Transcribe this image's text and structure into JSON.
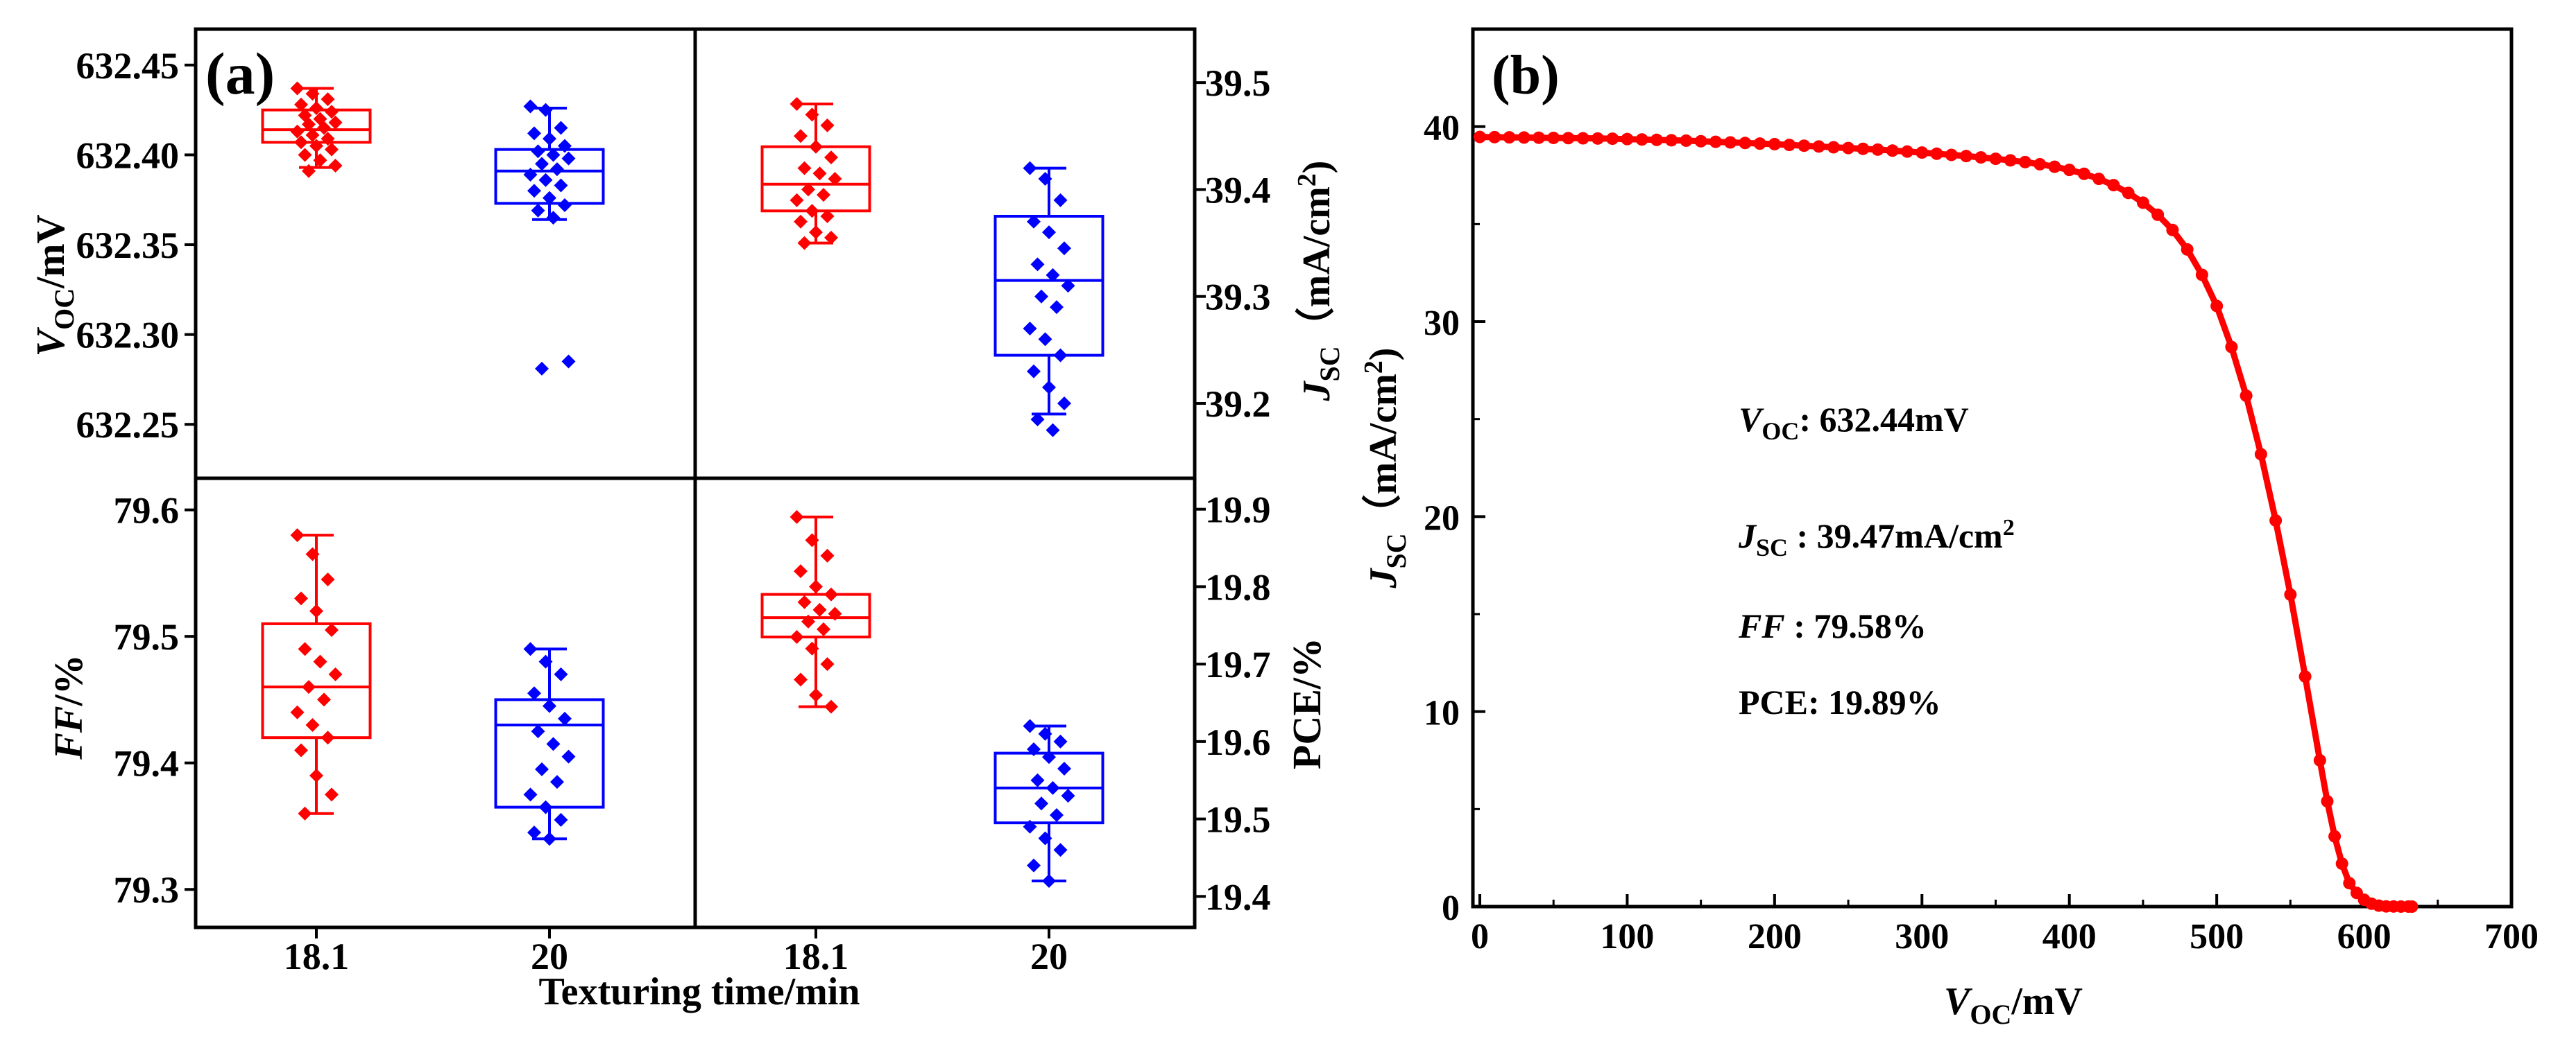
{
  "panel_a": {
    "label": "(a)",
    "xlabel": "Texturing time/min",
    "ylabel_voc": {
      "main": "V",
      "sub": "OC",
      "unit": "/mV"
    },
    "ylabel_jsc": {
      "main": "J",
      "sub": "SC",
      "unit": "（mA/cm",
      "sup": "2",
      "close": ")"
    },
    "ylabel_ff": {
      "main": "FF",
      "unit": "/%"
    },
    "ylabel_pce": "PCE/%"
  },
  "panel_b": {
    "label": "(b)",
    "xlabel": {
      "main": "V",
      "sub": "OC",
      "unit": "/mV"
    },
    "ylabel": {
      "main": "J",
      "sub": "SC",
      "unit": "（mA/cm",
      "sup": "2",
      "close": ")"
    },
    "annotations": {
      "voc": {
        "name": "V",
        "sub": "OC",
        "value": ":  632.44mV"
      },
      "jsc": {
        "name": "J",
        "sub": "SC",
        "value": " :   39.47mA/cm",
        "sup": "2"
      },
      "ff": {
        "name": "FF",
        "value": "  :  79.58%"
      },
      "pce": {
        "name": "PCE",
        "value": ":  19.89%"
      }
    }
  },
  "colors": {
    "red": "#ff0000",
    "blue": "#0000ff",
    "black": "#000000"
  },
  "chart_data": [
    {
      "type": "box",
      "name": "voc-box",
      "categories": [
        "18.1",
        "20"
      ],
      "ylabel": "VOC/mV",
      "ylim": [
        632.22,
        632.47
      ],
      "yticks": [
        632.25,
        632.3,
        632.35,
        632.4,
        632.45
      ],
      "ytick_labels": [
        "632.25",
        "632.30",
        "632.35",
        "632.40",
        "632.45"
      ],
      "series": [
        {
          "name": "18.1",
          "color": "#ff0000",
          "q1": 632.407,
          "median": 632.414,
          "q3": 632.425,
          "whisker_low": 632.393,
          "whisker_high": 632.437,
          "points": [
            632.437,
            632.434,
            632.431,
            632.428,
            632.426,
            632.424,
            632.422,
            632.42,
            632.418,
            632.417,
            632.415,
            632.413,
            632.411,
            632.409,
            632.407,
            632.405,
            632.403,
            632.4,
            632.397,
            632.394,
            632.391
          ]
        },
        {
          "name": "20",
          "color": "#0000ff",
          "q1": 632.373,
          "median": 632.391,
          "q3": 632.403,
          "whisker_low": 632.364,
          "whisker_high": 632.426,
          "points": [
            632.427,
            632.425,
            632.415,
            632.412,
            632.409,
            632.405,
            632.402,
            632.4,
            632.398,
            632.395,
            632.392,
            632.389,
            632.386,
            632.383,
            632.38,
            632.376,
            632.372,
            632.369,
            632.365,
            632.285,
            632.281
          ]
        }
      ]
    },
    {
      "type": "box",
      "name": "jsc-box",
      "categories": [
        "18.1",
        "20"
      ],
      "ylabel": "JSC (mA/cm2)",
      "ylim": [
        39.13,
        39.55
      ],
      "yticks": [
        39.2,
        39.3,
        39.4,
        39.5
      ],
      "ytick_labels": [
        "39.2",
        "39.3",
        "39.4",
        "39.5"
      ],
      "series": [
        {
          "name": "18.1",
          "color": "#ff0000",
          "q1": 39.38,
          "median": 39.405,
          "q3": 39.44,
          "whisker_low": 39.35,
          "whisker_high": 39.48,
          "points": [
            39.48,
            39.47,
            39.46,
            39.45,
            39.44,
            39.43,
            39.42,
            39.415,
            39.41,
            39.4,
            39.395,
            39.39,
            39.38,
            39.375,
            39.37,
            39.36,
            39.355,
            39.35
          ]
        },
        {
          "name": "20",
          "color": "#0000ff",
          "q1": 39.245,
          "median": 39.315,
          "q3": 39.375,
          "whisker_low": 39.19,
          "whisker_high": 39.42,
          "points": [
            39.42,
            39.41,
            39.39,
            39.37,
            39.36,
            39.345,
            39.33,
            39.32,
            39.31,
            39.3,
            39.29,
            39.27,
            39.26,
            39.245,
            39.23,
            39.215,
            39.2,
            39.185,
            39.175
          ]
        }
      ]
    },
    {
      "type": "box",
      "name": "ff-box",
      "categories": [
        "18.1",
        "20"
      ],
      "ylabel": "FF/%",
      "ylim": [
        79.27,
        79.625
      ],
      "yticks": [
        79.3,
        79.4,
        79.5,
        79.6
      ],
      "ytick_labels": [
        "79.3",
        "79.4",
        "79.5",
        "79.6"
      ],
      "series": [
        {
          "name": "18.1",
          "color": "#ff0000",
          "q1": 79.42,
          "median": 79.46,
          "q3": 79.51,
          "whisker_low": 79.36,
          "whisker_high": 79.58,
          "points": [
            79.58,
            79.565,
            79.545,
            79.53,
            79.52,
            79.505,
            79.49,
            79.48,
            79.47,
            79.46,
            79.45,
            79.44,
            79.43,
            79.42,
            79.41,
            79.39,
            79.375,
            79.36
          ]
        },
        {
          "name": "20",
          "color": "#0000ff",
          "q1": 79.365,
          "median": 79.43,
          "q3": 79.45,
          "whisker_low": 79.34,
          "whisker_high": 79.49,
          "points": [
            79.49,
            79.48,
            79.47,
            79.455,
            79.445,
            79.435,
            79.425,
            79.415,
            79.405,
            79.395,
            79.385,
            79.375,
            79.365,
            79.355,
            79.345,
            79.34
          ]
        }
      ]
    },
    {
      "type": "box",
      "name": "pce-box",
      "categories": [
        "18.1",
        "20"
      ],
      "ylabel": "PCE/%",
      "ylim": [
        19.36,
        19.94
      ],
      "yticks": [
        19.4,
        19.5,
        19.6,
        19.7,
        19.8,
        19.9
      ],
      "ytick_labels": [
        "19.4",
        "19.5",
        "19.6",
        "19.7",
        "19.8",
        "19.9"
      ],
      "series": [
        {
          "name": "18.1",
          "color": "#ff0000",
          "q1": 19.735,
          "median": 19.76,
          "q3": 19.79,
          "whisker_low": 19.645,
          "whisker_high": 19.89,
          "points": [
            19.89,
            19.86,
            19.84,
            19.82,
            19.8,
            19.79,
            19.78,
            19.77,
            19.765,
            19.755,
            19.745,
            19.735,
            19.72,
            19.7,
            19.68,
            19.66,
            19.645
          ]
        },
        {
          "name": "20",
          "color": "#0000ff",
          "q1": 19.495,
          "median": 19.54,
          "q3": 19.585,
          "whisker_low": 19.42,
          "whisker_high": 19.62,
          "points": [
            19.62,
            19.61,
            19.6,
            19.59,
            19.58,
            19.565,
            19.55,
            19.54,
            19.53,
            19.52,
            19.505,
            19.49,
            19.475,
            19.46,
            19.44,
            19.42
          ]
        }
      ]
    },
    {
      "type": "line",
      "name": "jv-curve",
      "title": "",
      "xlabel": "VOC/mV",
      "ylabel": "JSC (mA/cm2)",
      "xlim": [
        0,
        700
      ],
      "ylim": [
        0,
        45
      ],
      "xticks": [
        0,
        100,
        200,
        300,
        400,
        500,
        600,
        700
      ],
      "yticks": [
        0,
        10,
        20,
        30,
        40
      ],
      "series": [
        {
          "name": "J-V",
          "color": "#ff0000",
          "x": [
            0,
            10,
            20,
            30,
            40,
            50,
            60,
            70,
            80,
            90,
            100,
            110,
            120,
            130,
            140,
            150,
            160,
            170,
            180,
            190,
            200,
            210,
            220,
            230,
            240,
            250,
            260,
            270,
            280,
            290,
            300,
            310,
            320,
            330,
            340,
            350,
            360,
            370,
            380,
            390,
            400,
            410,
            420,
            430,
            440,
            450,
            460,
            470,
            480,
            490,
            500,
            510,
            520,
            530,
            540,
            550,
            560,
            570,
            575,
            580,
            585,
            590,
            595,
            600,
            605,
            610,
            615,
            620,
            625,
            630,
            632.44
          ],
          "y": [
            39.47,
            39.46,
            39.45,
            39.44,
            39.43,
            39.42,
            39.41,
            39.4,
            39.39,
            39.38,
            39.36,
            39.34,
            39.32,
            39.3,
            39.28,
            39.25,
            39.22,
            39.19,
            39.16,
            39.13,
            39.1,
            39.06,
            39.02,
            38.98,
            38.94,
            38.9,
            38.86,
            38.82,
            38.77,
            38.72,
            38.67,
            38.61,
            38.55,
            38.49,
            38.42,
            38.35,
            38.27,
            38.18,
            38.07,
            37.94,
            37.78,
            37.58,
            37.32,
            37.0,
            36.6,
            36.1,
            35.48,
            34.7,
            33.7,
            32.4,
            30.8,
            28.7,
            26.2,
            23.2,
            19.8,
            16.0,
            11.8,
            7.5,
            5.4,
            3.6,
            2.2,
            1.2,
            0.7,
            0.35,
            0.15,
            0.05,
            0.01,
            0.005,
            0.002,
            0.001,
            0
          ]
        }
      ]
    }
  ]
}
